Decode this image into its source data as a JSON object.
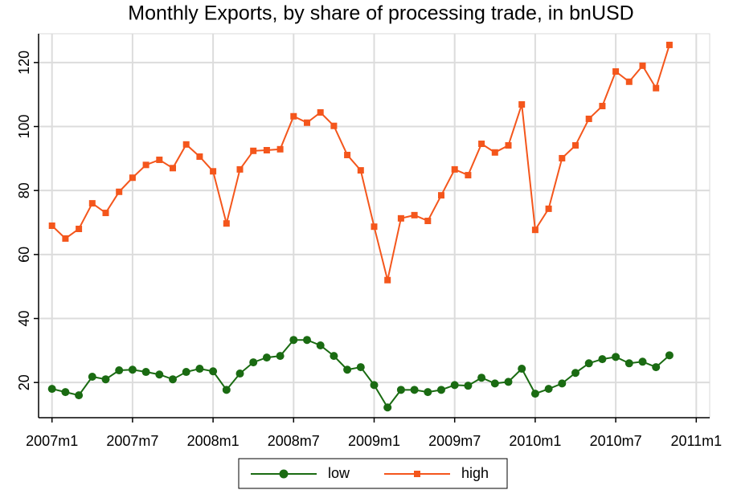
{
  "chart_data": {
    "type": "line",
    "title": "Monthly Exports, by share of processing trade, in bnUSD",
    "x": [
      564,
      565,
      566,
      567,
      568,
      569,
      570,
      571,
      572,
      573,
      574,
      575,
      576,
      577,
      578,
      579,
      580,
      581,
      582,
      583,
      584,
      585,
      586,
      587,
      588,
      589,
      590,
      591,
      592,
      593,
      594,
      595,
      596,
      597,
      598,
      599,
      600,
      601,
      602,
      603,
      604,
      605,
      606,
      607,
      608,
      609,
      610
    ],
    "series": [
      {
        "name": "low",
        "color": "#1a6b12",
        "marker": "circle",
        "values": [
          18,
          17,
          16,
          21.8,
          21,
          23.8,
          24,
          23.3,
          22.5,
          21,
          23.3,
          24.3,
          23.5,
          17.7,
          22.8,
          26.3,
          27.8,
          28.3,
          33.3,
          33.3,
          31.6,
          28.3,
          24,
          24.8,
          19.2,
          12.2,
          17.7,
          17.7,
          17,
          17.7,
          19.2,
          19,
          21.5,
          19.7,
          20.2,
          24.3,
          16.5,
          18,
          19.7,
          23,
          26,
          27.3,
          28,
          26,
          26.5,
          24.8,
          28.5
        ]
      },
      {
        "name": "high",
        "color": "#f4561c",
        "marker": "square",
        "values": [
          69,
          65,
          68,
          76,
          73,
          79.6,
          84,
          88,
          89.6,
          87,
          94.4,
          90.6,
          86,
          69.7,
          86.6,
          92.4,
          92.6,
          92.9,
          103.2,
          101.2,
          104.4,
          100.2,
          91.1,
          86.3,
          68.7,
          52,
          71.3,
          72.3,
          70.5,
          78.5,
          86.6,
          84.8,
          94.6,
          91.9,
          94.1,
          106.9,
          67.7,
          74.3,
          90.1,
          94.1,
          102.4,
          106.4,
          117.2,
          114,
          119,
          112,
          125.5
        ]
      }
    ],
    "xlim": [
      563,
      613
    ],
    "xticks": [
      {
        "value": 564,
        "label": "2007m1"
      },
      {
        "value": 570,
        "label": "2007m7"
      },
      {
        "value": 576,
        "label": "2008m1"
      },
      {
        "value": 582,
        "label": "2008m7"
      },
      {
        "value": 588,
        "label": "2009m1"
      },
      {
        "value": 594,
        "label": "2009m7"
      },
      {
        "value": 600,
        "label": "2010m1"
      },
      {
        "value": 606,
        "label": "2010m7"
      },
      {
        "value": 612,
        "label": "2011m1"
      }
    ],
    "ylim": [
      9,
      129
    ],
    "yticks": [
      20,
      40,
      60,
      80,
      100,
      120
    ],
    "grid": true,
    "legend": "bottom"
  }
}
